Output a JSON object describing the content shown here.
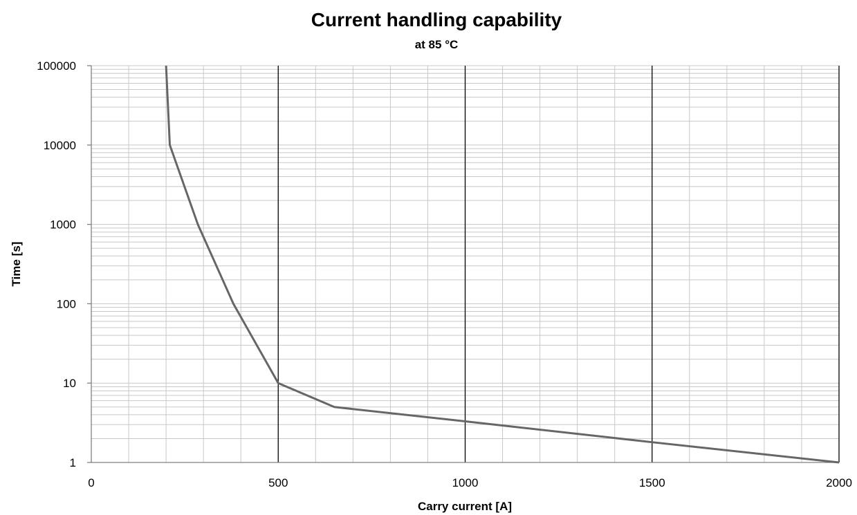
{
  "chart_data": {
    "type": "line",
    "title": "Current handling capability",
    "subtitle": "at 85 °C",
    "xlabel": "Carry current [A]",
    "ylabel": "Time [s]",
    "xlim": [
      0,
      2000
    ],
    "ylim": [
      1,
      100000
    ],
    "y_scale": "log",
    "x_major_ticks": [
      0,
      500,
      1000,
      1500,
      2000
    ],
    "x_tick_labels": [
      "0",
      "500",
      "1000",
      "1500",
      "2000"
    ],
    "x_minor_step": 100,
    "y_major_ticks": [
      1,
      10,
      100,
      1000,
      10000,
      100000
    ],
    "y_tick_labels": [
      "1",
      "10",
      "100",
      "1000",
      "10000",
      "100000"
    ],
    "grid": true,
    "legend": "none",
    "series": [
      {
        "color": "#666666",
        "points": [
          [
            200,
            100000
          ],
          [
            210,
            10000
          ],
          [
            285,
            1000
          ],
          [
            380,
            100
          ],
          [
            500,
            10
          ],
          [
            650,
            5
          ],
          [
            1000,
            3.3
          ],
          [
            1500,
            1.8
          ],
          [
            2000,
            1
          ]
        ]
      }
    ],
    "colors": {
      "major_grid": "#000000",
      "minor_grid": "#c8c8c8",
      "axis": "#808080"
    }
  }
}
